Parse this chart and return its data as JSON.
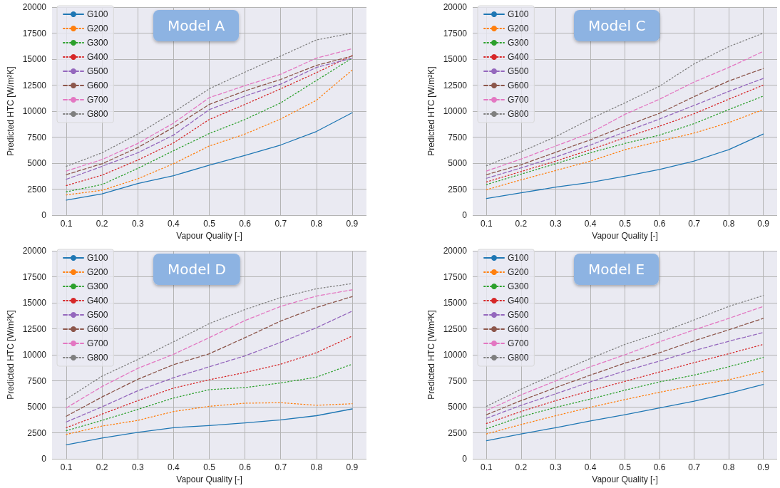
{
  "chart_data": [
    {
      "type": "line",
      "title": "Model A",
      "xlabel": "Vapour Quality [-]",
      "ylabel": "Predicted HTC [W/m²K]",
      "x": [
        0.1,
        0.2,
        0.3,
        0.4,
        0.5,
        0.6,
        0.7,
        0.8,
        0.9
      ],
      "xlim": [
        0.06,
        0.94
      ],
      "xticks": [
        0.1,
        0.2,
        0.3,
        0.4,
        0.5,
        0.6,
        0.7,
        0.8,
        0.9
      ],
      "ylim": [
        0,
        20000
      ],
      "yticks": [
        0,
        2500,
        5000,
        7500,
        10000,
        12500,
        15000,
        17500,
        20000
      ],
      "grid": true,
      "legend": "top left",
      "marker": "none",
      "series": [
        {
          "name": "G100",
          "color": "#1f77b4",
          "line_style": "solid",
          "values": [
            1450,
            2050,
            3050,
            3800,
            4800,
            5750,
            6750,
            8050,
            9850
          ]
        },
        {
          "name": "G200",
          "color": "#ff7f0e",
          "line_style": "dotted",
          "values": [
            1950,
            2400,
            3500,
            4950,
            6650,
            7800,
            9250,
            11050,
            13950
          ]
        },
        {
          "name": "G300",
          "color": "#2ca02c",
          "line_style": "dotted",
          "values": [
            2250,
            2950,
            4500,
            6200,
            7850,
            9200,
            10800,
            12950,
            15100
          ]
        },
        {
          "name": "G400",
          "color": "#d62728",
          "line_style": "dotted",
          "values": [
            2850,
            3850,
            5300,
            6950,
            9200,
            10650,
            12150,
            13700,
            15350
          ]
        },
        {
          "name": "G500",
          "color": "#9467bd",
          "line_style": "dashed",
          "values": [
            3450,
            4700,
            6000,
            7700,
            10150,
            11450,
            12600,
            14200,
            15100
          ]
        },
        {
          "name": "G600",
          "color": "#8c564b",
          "line_style": "dashed",
          "values": [
            3900,
            4950,
            6500,
            8450,
            10650,
            11950,
            13050,
            14400,
            15300
          ]
        },
        {
          "name": "G700",
          "color": "#e377c2",
          "line_style": "dashed",
          "values": [
            4250,
            5350,
            6900,
            8850,
            11300,
            12450,
            13550,
            15100,
            16000
          ]
        },
        {
          "name": "G800",
          "color": "#7f7f7f",
          "line_style": "dotted",
          "values": [
            4700,
            6000,
            7800,
            9900,
            12150,
            13750,
            15300,
            16850,
            17500
          ]
        }
      ]
    },
    {
      "type": "line",
      "title": "Model C",
      "xlabel": "Vapour Quality [-]",
      "ylabel": "Predicted HTC [W/m²K]",
      "x": [
        0.1,
        0.2,
        0.3,
        0.4,
        0.5,
        0.6,
        0.7,
        0.8,
        0.9
      ],
      "xlim": [
        0.06,
        0.94
      ],
      "xticks": [
        0.1,
        0.2,
        0.3,
        0.4,
        0.5,
        0.6,
        0.7,
        0.8,
        0.9
      ],
      "ylim": [
        0,
        20000
      ],
      "yticks": [
        0,
        2500,
        5000,
        7500,
        10000,
        12500,
        15000,
        17500,
        20000
      ],
      "grid": true,
      "legend": "top left",
      "marker": "none",
      "series": [
        {
          "name": "G100",
          "color": "#1f77b4",
          "line_style": "solid",
          "values": [
            1600,
            2150,
            2700,
            3150,
            3750,
            4400,
            5200,
            6300,
            7800
          ]
        },
        {
          "name": "G200",
          "color": "#ff7f0e",
          "line_style": "dotted",
          "values": [
            2450,
            3400,
            4300,
            5200,
            6300,
            7100,
            7900,
            8900,
            10150
          ]
        },
        {
          "name": "G300",
          "color": "#2ca02c",
          "line_style": "dotted",
          "values": [
            2950,
            3950,
            4950,
            6000,
            6900,
            7700,
            8800,
            10150,
            11450
          ]
        },
        {
          "name": "G400",
          "color": "#d62728",
          "line_style": "dotted",
          "values": [
            3200,
            4200,
            5200,
            6300,
            7450,
            8550,
            9750,
            11150,
            12500
          ]
        },
        {
          "name": "G500",
          "color": "#9467bd",
          "line_style": "dashed",
          "values": [
            3550,
            4550,
            5600,
            6750,
            8000,
            9250,
            10550,
            11900,
            13150
          ]
        },
        {
          "name": "G600",
          "color": "#8c564b",
          "line_style": "dashed",
          "values": [
            3900,
            4850,
            6050,
            7250,
            8550,
            9800,
            11400,
            12900,
            14100
          ]
        },
        {
          "name": "G700",
          "color": "#e377c2",
          "line_style": "dashed",
          "values": [
            4250,
            5400,
            6650,
            7900,
            9700,
            11150,
            12800,
            14200,
            15750
          ]
        },
        {
          "name": "G800",
          "color": "#7f7f7f",
          "line_style": "dotted",
          "values": [
            4750,
            6100,
            7550,
            9250,
            10800,
            12400,
            14550,
            16200,
            17500
          ]
        }
      ]
    },
    {
      "type": "line",
      "title": "Model D",
      "xlabel": "Vapour Quality [-]",
      "ylabel": "Predicted HTC [W/m²K]",
      "x": [
        0.1,
        0.2,
        0.3,
        0.4,
        0.5,
        0.6,
        0.7,
        0.8,
        0.9
      ],
      "xlim": [
        0.06,
        0.94
      ],
      "xticks": [
        0.1,
        0.2,
        0.3,
        0.4,
        0.5,
        0.6,
        0.7,
        0.8,
        0.9
      ],
      "ylim": [
        0,
        20000
      ],
      "yticks": [
        0,
        2500,
        5000,
        7500,
        10000,
        12500,
        15000,
        17500,
        20000
      ],
      "grid": true,
      "legend": "top left",
      "marker": "none",
      "series": [
        {
          "name": "G100",
          "color": "#1f77b4",
          "line_style": "solid",
          "values": [
            1350,
            2000,
            2550,
            3000,
            3200,
            3450,
            3750,
            4150,
            4800
          ]
        },
        {
          "name": "G200",
          "color": "#ff7f0e",
          "line_style": "dotted",
          "values": [
            2350,
            3150,
            3700,
            4550,
            5050,
            5350,
            5400,
            5150,
            5300
          ]
        },
        {
          "name": "G300",
          "color": "#2ca02c",
          "line_style": "dotted",
          "values": [
            2700,
            3700,
            4750,
            5850,
            6650,
            6850,
            7300,
            7850,
            9100
          ]
        },
        {
          "name": "G400",
          "color": "#d62728",
          "line_style": "dotted",
          "values": [
            3000,
            4300,
            5600,
            6800,
            7600,
            8300,
            9100,
            10200,
            11800
          ]
        },
        {
          "name": "G500",
          "color": "#9467bd",
          "line_style": "dashed",
          "values": [
            3550,
            5000,
            6550,
            7800,
            8850,
            9900,
            11200,
            12600,
            14200
          ]
        },
        {
          "name": "G600",
          "color": "#8c564b",
          "line_style": "dashed",
          "values": [
            4100,
            5950,
            7650,
            9050,
            10100,
            11650,
            13250,
            14550,
            15600
          ]
        },
        {
          "name": "G700",
          "color": "#e377c2",
          "line_style": "dashed",
          "values": [
            4900,
            6950,
            8700,
            10050,
            11650,
            13300,
            14650,
            15650,
            16250
          ]
        },
        {
          "name": "G800",
          "color": "#7f7f7f",
          "line_style": "dotted",
          "values": [
            5750,
            7950,
            9550,
            11250,
            13000,
            14350,
            15500,
            16350,
            16850
          ]
        }
      ]
    },
    {
      "type": "line",
      "title": "Model E",
      "xlabel": "Vapour Quality [-]",
      "ylabel": "Predicted HTC [W/m²K]",
      "x": [
        0.1,
        0.2,
        0.3,
        0.4,
        0.5,
        0.6,
        0.7,
        0.8,
        0.9
      ],
      "xlim": [
        0.06,
        0.94
      ],
      "xticks": [
        0.1,
        0.2,
        0.3,
        0.4,
        0.5,
        0.6,
        0.7,
        0.8,
        0.9
      ],
      "ylim": [
        0,
        20000
      ],
      "yticks": [
        0,
        2500,
        5000,
        7500,
        10000,
        12500,
        15000,
        17500,
        20000
      ],
      "grid": true,
      "legend": "top left",
      "marker": "none",
      "series": [
        {
          "name": "G100",
          "color": "#1f77b4",
          "line_style": "solid",
          "values": [
            1750,
            2400,
            3000,
            3650,
            4250,
            4900,
            5550,
            6300,
            7150
          ]
        },
        {
          "name": "G200",
          "color": "#ff7f0e",
          "line_style": "dotted",
          "values": [
            2400,
            3300,
            4150,
            4950,
            5700,
            6400,
            7050,
            7600,
            8400
          ]
        },
        {
          "name": "G300",
          "color": "#2ca02c",
          "line_style": "dotted",
          "values": [
            2900,
            4050,
            4950,
            5750,
            6600,
            7400,
            8050,
            8850,
            9750
          ]
        },
        {
          "name": "G400",
          "color": "#d62728",
          "line_style": "dotted",
          "values": [
            3400,
            4550,
            5600,
            6550,
            7450,
            8350,
            9250,
            10100,
            11000
          ]
        },
        {
          "name": "G500",
          "color": "#9467bd",
          "line_style": "dashed",
          "values": [
            3900,
            5150,
            6250,
            7400,
            8450,
            9400,
            10400,
            11300,
            12150
          ]
        },
        {
          "name": "G600",
          "color": "#8c564b",
          "line_style": "dashed",
          "values": [
            4250,
            5600,
            6850,
            8050,
            9200,
            10200,
            11350,
            12400,
            13500
          ]
        },
        {
          "name": "G700",
          "color": "#e377c2",
          "line_style": "dashed",
          "values": [
            4650,
            6150,
            7500,
            8850,
            10000,
            11250,
            12400,
            13500,
            14650
          ]
        },
        {
          "name": "G800",
          "color": "#7f7f7f",
          "line_style": "dotted",
          "values": [
            5050,
            6700,
            8200,
            9650,
            11000,
            12100,
            13350,
            14650,
            15700
          ]
        }
      ]
    }
  ]
}
